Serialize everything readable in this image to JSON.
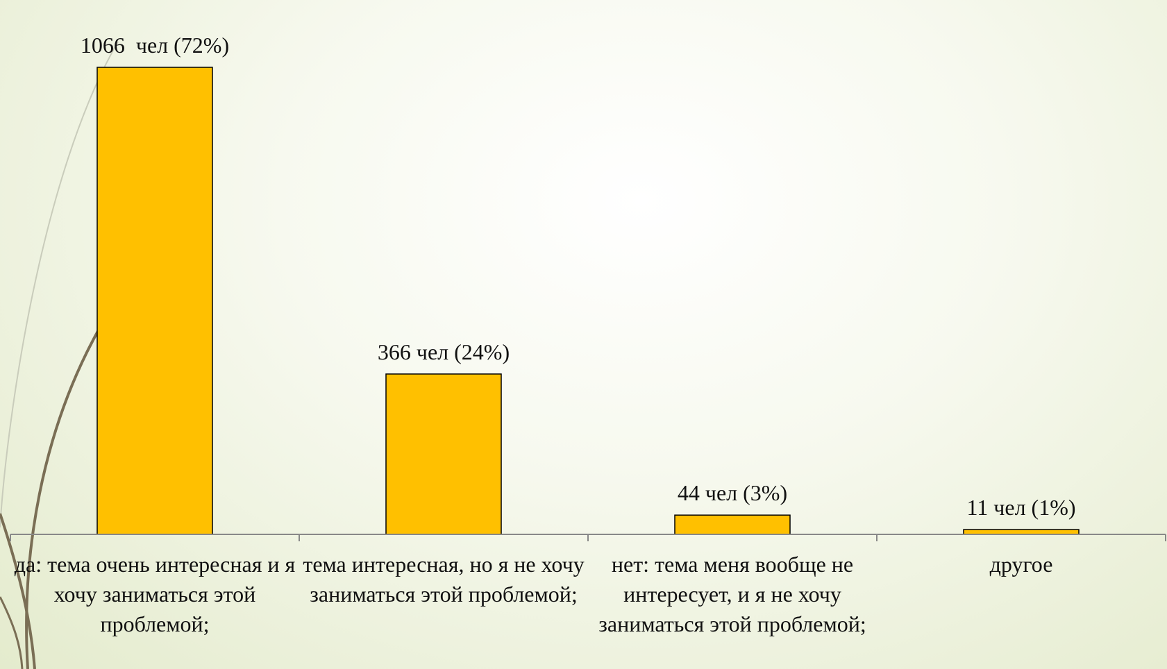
{
  "chart_data": {
    "type": "bar",
    "categories": [
      "да: тема очень интересная и я хочу заниматься этой проблемой;",
      "тема интересная, но я не хочу заниматься этой проблемой;",
      "нет: тема меня вообще не интересует, и я не хочу заниматься этой проблемой;",
      "другое"
    ],
    "values": [
      1066,
      366,
      44,
      11
    ],
    "value_labels": [
      "1066  чел (72%)",
      "366 чел (24%)",
      "44 чел (3%)",
      "11 чел (1%)"
    ],
    "color": "#ffc000"
  }
}
